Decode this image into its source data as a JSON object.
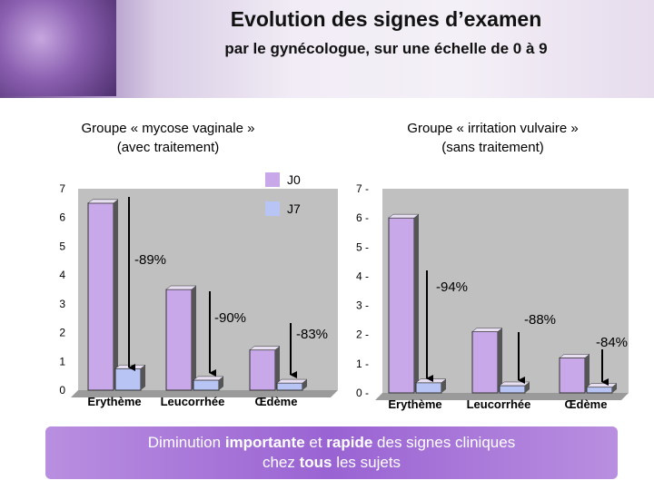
{
  "header": {
    "title": "Evolution des signes d’examen",
    "subtitle": "par le gynécologue, sur une échelle de 0 à 9"
  },
  "groups": {
    "left_title": "Groupe « mycose vaginale »",
    "left_sub": "(avec traitement)",
    "right_title": "Groupe « irritation vulvaire »",
    "right_sub": "(sans traitement)"
  },
  "legend": {
    "j0": "J0",
    "j7": "J7"
  },
  "colors": {
    "j0": "#c8a8e8",
    "j7": "#b8c4f4",
    "banner": "#a070d6",
    "plot_bg": "#c0c0c0"
  },
  "footer": {
    "p1": "Diminution ",
    "b1": "importante",
    "p2": " et ",
    "b2": "rapide",
    "p3": " des signes cliniques",
    "p4": "chez ",
    "b3": "tous",
    "p5": " les sujets"
  },
  "chart_data": [
    {
      "type": "bar",
      "categories": [
        "Erythème",
        "Leucorrhée",
        "Œdème"
      ],
      "series": [
        {
          "name": "J0",
          "values": [
            6.5,
            3.5,
            1.4
          ]
        },
        {
          "name": "J7",
          "values": [
            0.75,
            0.35,
            0.25
          ]
        }
      ],
      "yticks": [
        "0",
        "1",
        "2",
        "3",
        "4",
        "5",
        "6",
        "7"
      ],
      "ylim": [
        0,
        7
      ],
      "annotations": [
        "-89%",
        "-90%",
        "-83%"
      ]
    },
    {
      "type": "bar",
      "categories": [
        "Erythème",
        "Leucorrhée",
        "Œdème"
      ],
      "series": [
        {
          "name": "J0",
          "values": [
            6.0,
            2.1,
            1.2
          ]
        },
        {
          "name": "J7",
          "values": [
            0.35,
            0.25,
            0.2
          ]
        }
      ],
      "yticks": [
        "0",
        "1",
        "2",
        "3",
        "4",
        "5",
        "6",
        "7"
      ],
      "ylim": [
        0,
        7
      ],
      "annotations": [
        "-94%",
        "-88%",
        "-84%"
      ]
    }
  ]
}
